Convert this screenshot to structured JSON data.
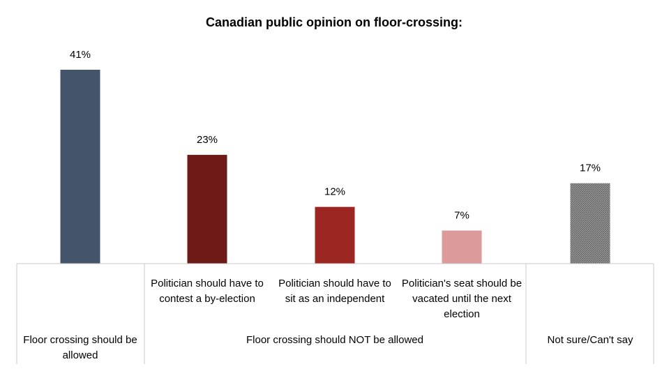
{
  "chart_data": {
    "type": "bar",
    "title": "Canadian public opinion on floor-crossing:",
    "xlabel": "",
    "ylabel": "",
    "ylim": [
      0,
      45
    ],
    "grid": false,
    "legend": "none",
    "categories": [
      "Floor crossing should be allowed",
      "Politician should have to contest a by-election",
      "Politician should have to sit as an independent",
      "Politician's seat should be vacated until the next election",
      "Not sure/Can't say"
    ],
    "values": [
      41,
      23,
      12,
      7,
      17
    ],
    "value_labels": [
      "41%",
      "23%",
      "12%",
      "7%",
      "17%"
    ],
    "colors": [
      "#44546a",
      "#6e1a16",
      "#9b2622",
      "#dc9a9a",
      "#808080"
    ],
    "groups": [
      {
        "label": "Floor crossing should be allowed",
        "members": [
          0
        ]
      },
      {
        "label": "Floor crossing should NOT be allowed",
        "members": [
          1,
          2,
          3
        ]
      },
      {
        "label": "Not sure/Can't say",
        "members": [
          4
        ]
      }
    ]
  }
}
